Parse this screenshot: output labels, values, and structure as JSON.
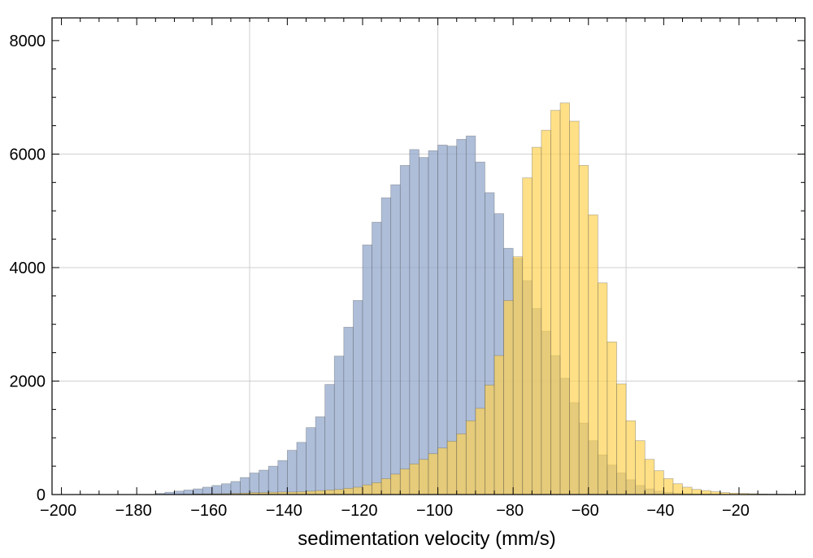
{
  "chart_data": {
    "type": "bar",
    "xlabel": "sedimentation velocity (mm/s)",
    "ylabel": "",
    "title": "",
    "xlim": [
      -202.5,
      -2.5
    ],
    "ylim": [
      0,
      8400
    ],
    "grid": true,
    "legend": "none",
    "bin_width": 2.5,
    "x_ticks": [
      -200,
      -180,
      -160,
      -140,
      -120,
      -100,
      -80,
      -60,
      -40,
      -20
    ],
    "x_tick_labels": [
      "−200",
      "−180",
      "−160",
      "−140",
      "−120",
      "−100",
      "−80",
      "−60",
      "−40",
      "−20"
    ],
    "y_ticks": [
      0,
      2000,
      4000,
      6000,
      8000
    ],
    "y_tick_labels": [
      "0",
      "2000",
      "4000",
      "6000",
      "8000"
    ],
    "series": [
      {
        "color": "#8FA5CB",
        "opacity": 0.72,
        "bin_starts": [
          -175,
          -172.5,
          -170,
          -167.5,
          -165,
          -162.5,
          -160,
          -157.5,
          -155,
          -152.5,
          -150,
          -147.5,
          -145,
          -142.5,
          -140,
          -137.5,
          -135,
          -132.5,
          -130,
          -127.5,
          -125,
          -122.5,
          -120,
          -117.5,
          -115,
          -112.5,
          -110,
          -107.5,
          -105,
          -102.5,
          -100,
          -97.5,
          -95,
          -92.5,
          -90,
          -87.5,
          -85,
          -82.5,
          -80,
          -77.5,
          -75,
          -72.5,
          -70,
          -67.5,
          -65,
          -62.5,
          -60,
          -57.5,
          -55,
          -52.5,
          -50,
          -47.5,
          -45,
          -42.5,
          -40,
          -37.5,
          -35,
          -32.5,
          -30,
          -27.5
        ],
        "values": [
          20,
          40,
          60,
          80,
          100,
          130,
          160,
          190,
          230,
          300,
          380,
          430,
          500,
          600,
          780,
          920,
          1180,
          1370,
          1940,
          2440,
          2950,
          3420,
          4400,
          4800,
          5230,
          5460,
          5800,
          6080,
          5940,
          6060,
          6160,
          6140,
          6260,
          6320,
          5860,
          5320,
          4950,
          4340,
          4160,
          3770,
          3280,
          2880,
          2450,
          2050,
          1620,
          1260,
          950,
          700,
          520,
          380,
          260,
          160,
          100,
          60,
          40,
          25,
          15,
          10,
          8,
          6
        ]
      },
      {
        "color": "#FFD24D",
        "opacity": 0.68,
        "bin_starts": [
          -165,
          -162.5,
          -160,
          -157.5,
          -155,
          -152.5,
          -150,
          -147.5,
          -145,
          -142.5,
          -140,
          -137.5,
          -135,
          -132.5,
          -130,
          -127.5,
          -125,
          -122.5,
          -120,
          -117.5,
          -115,
          -112.5,
          -110,
          -107.5,
          -105,
          -102.5,
          -100,
          -97.5,
          -95,
          -92.5,
          -90,
          -87.5,
          -85,
          -82.5,
          -80,
          -77.5,
          -75,
          -72.5,
          -70,
          -67.5,
          -65,
          -62.5,
          -60,
          -57.5,
          -55,
          -52.5,
          -50,
          -47.5,
          -45,
          -42.5,
          -40,
          -37.5,
          -35,
          -32.5,
          -30,
          -27.5,
          -25,
          -22.5,
          -20,
          -17.5,
          -15,
          -12.5,
          -10,
          -7.5
        ],
        "values": [
          10,
          12,
          14,
          16,
          20,
          25,
          35,
          35,
          40,
          45,
          45,
          50,
          60,
          70,
          80,
          90,
          110,
          130,
          170,
          210,
          280,
          360,
          450,
          540,
          620,
          720,
          820,
          940,
          1070,
          1300,
          1520,
          1930,
          2450,
          3420,
          4190,
          5580,
          6120,
          6420,
          6770,
          6900,
          6580,
          5800,
          4930,
          3730,
          2690,
          1950,
          1300,
          950,
          620,
          420,
          280,
          190,
          130,
          90,
          70,
          50,
          35,
          25,
          20,
          15,
          10,
          8,
          6,
          5
        ]
      }
    ]
  }
}
